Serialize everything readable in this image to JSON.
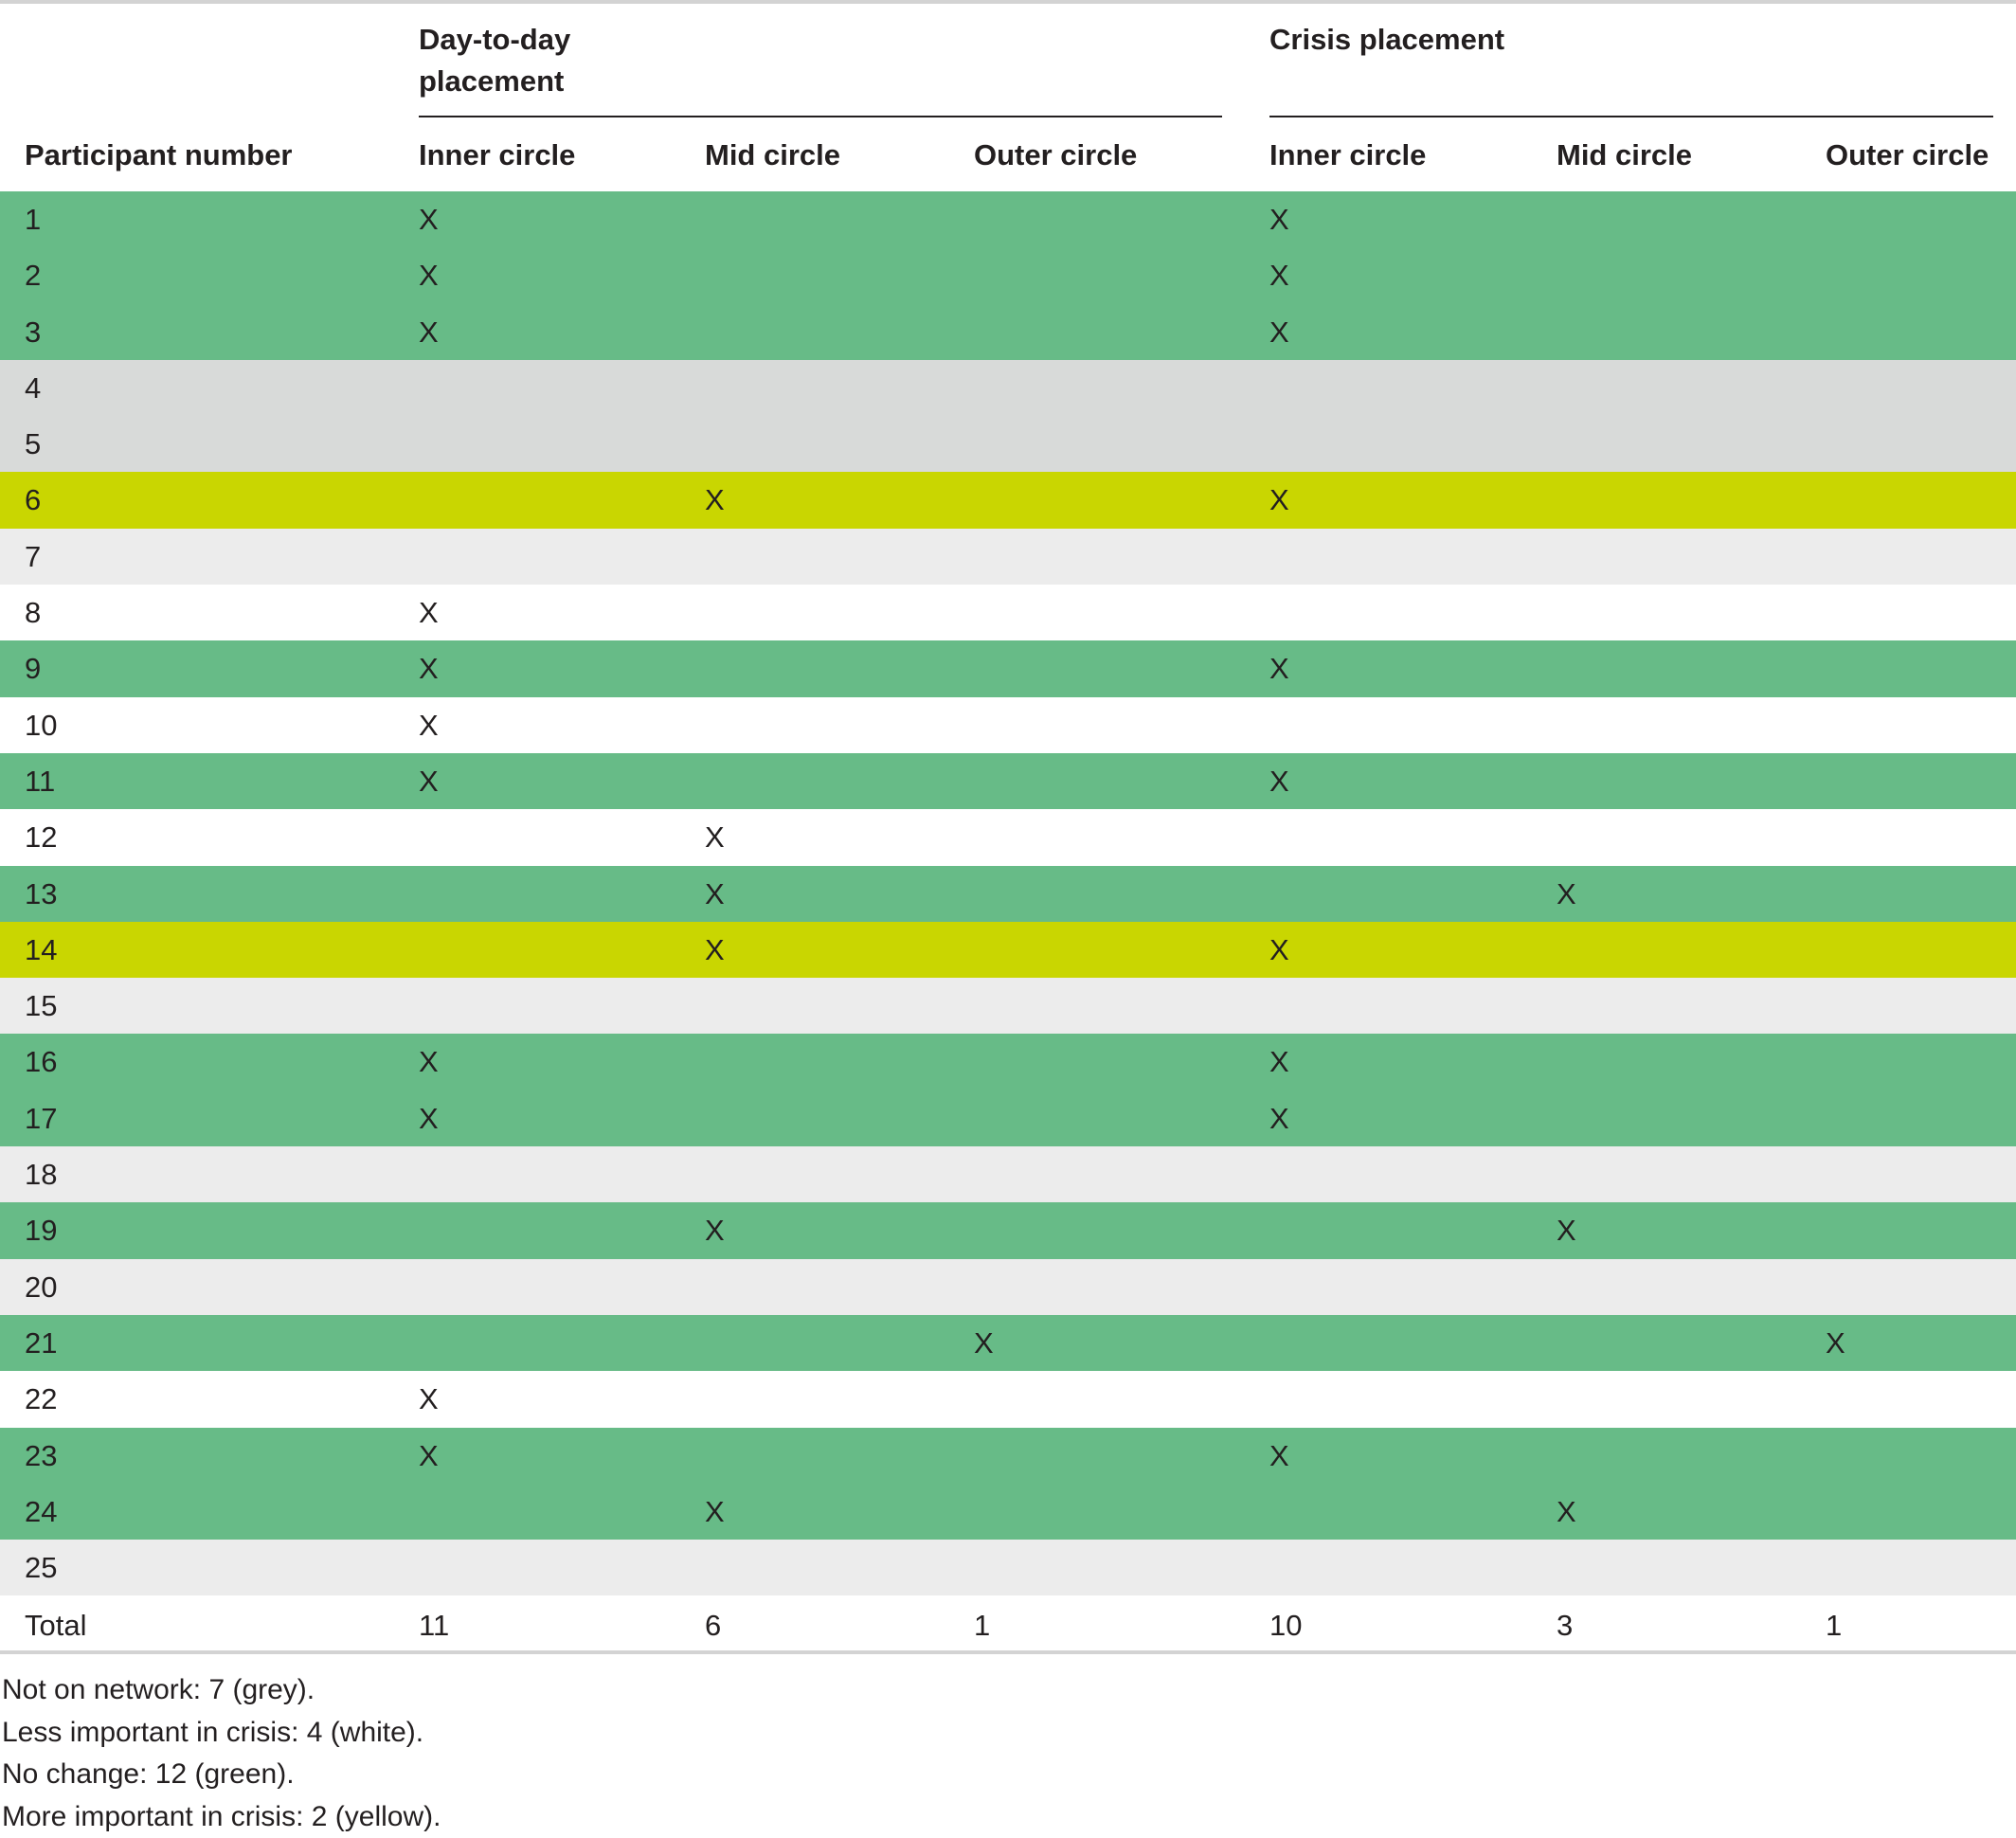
{
  "table": {
    "groups": [
      "Day-to-day placement",
      "Crisis placement"
    ],
    "columns": [
      "Participant number",
      "Inner circle",
      "Mid circle",
      "Outer circle",
      "Inner circle",
      "Mid circle",
      "Outer circle"
    ],
    "row_colors": {
      "green": "#67bb87",
      "grey": "#d8dad9",
      "light": "#ececec",
      "yellow": "#c9d601",
      "white": "#ffffff"
    },
    "rows": [
      {
        "cells": [
          "1",
          "X",
          "",
          "",
          "X",
          "",
          ""
        ],
        "category": "green"
      },
      {
        "cells": [
          "2",
          "X",
          "",
          "",
          "X",
          "",
          ""
        ],
        "category": "green"
      },
      {
        "cells": [
          "3",
          "X",
          "",
          "",
          "X",
          "",
          ""
        ],
        "category": "green"
      },
      {
        "cells": [
          "4",
          "",
          "",
          "",
          "",
          "",
          ""
        ],
        "category": "grey"
      },
      {
        "cells": [
          "5",
          "",
          "",
          "",
          "",
          "",
          ""
        ],
        "category": "grey"
      },
      {
        "cells": [
          "6",
          "",
          "X",
          "",
          "X",
          "",
          ""
        ],
        "category": "yellow"
      },
      {
        "cells": [
          "7",
          "",
          "",
          "",
          "",
          "",
          ""
        ],
        "category": "light"
      },
      {
        "cells": [
          "8",
          "X",
          "",
          "",
          "",
          "",
          ""
        ],
        "category": "white"
      },
      {
        "cells": [
          "9",
          "X",
          "",
          "",
          "X",
          "",
          ""
        ],
        "category": "green"
      },
      {
        "cells": [
          "10",
          "X",
          "",
          "",
          "",
          "",
          ""
        ],
        "category": "white"
      },
      {
        "cells": [
          "11",
          "X",
          "",
          "",
          "X",
          "",
          ""
        ],
        "category": "green"
      },
      {
        "cells": [
          "12",
          "",
          "X",
          "",
          "",
          "",
          ""
        ],
        "category": "white"
      },
      {
        "cells": [
          "13",
          "",
          "X",
          "",
          "",
          "X",
          ""
        ],
        "category": "green"
      },
      {
        "cells": [
          "14",
          "",
          "X",
          "",
          "X",
          "",
          ""
        ],
        "category": "yellow"
      },
      {
        "cells": [
          "15",
          "",
          "",
          "",
          "",
          "",
          ""
        ],
        "category": "light"
      },
      {
        "cells": [
          "16",
          "X",
          "",
          "",
          "X",
          "",
          ""
        ],
        "category": "green"
      },
      {
        "cells": [
          "17",
          "X",
          "",
          "",
          "X",
          "",
          ""
        ],
        "category": "green"
      },
      {
        "cells": [
          "18",
          "",
          "",
          "",
          "",
          "",
          ""
        ],
        "category": "light"
      },
      {
        "cells": [
          "19",
          "",
          "X",
          "",
          "",
          "X",
          ""
        ],
        "category": "green"
      },
      {
        "cells": [
          "20",
          "",
          "",
          "",
          "",
          "",
          ""
        ],
        "category": "light"
      },
      {
        "cells": [
          "21",
          "",
          "",
          "X",
          "",
          "",
          "X"
        ],
        "category": "green"
      },
      {
        "cells": [
          "22",
          "X",
          "",
          "",
          "",
          "",
          ""
        ],
        "category": "white"
      },
      {
        "cells": [
          "23",
          "X",
          "",
          "",
          "X",
          "",
          ""
        ],
        "category": "green"
      },
      {
        "cells": [
          "24",
          "",
          "X",
          "",
          "",
          "X",
          ""
        ],
        "category": "green"
      },
      {
        "cells": [
          "25",
          "",
          "",
          "",
          "",
          "",
          ""
        ],
        "category": "light"
      }
    ],
    "total": [
      "Total",
      "11",
      "6",
      "1",
      "10",
      "3",
      "1"
    ]
  },
  "notes": [
    "Not on network: 7 (grey).",
    "Less important in crisis: 4 (white).",
    "No change: 12 (green).",
    "More important in crisis: 2 (yellow)."
  ]
}
